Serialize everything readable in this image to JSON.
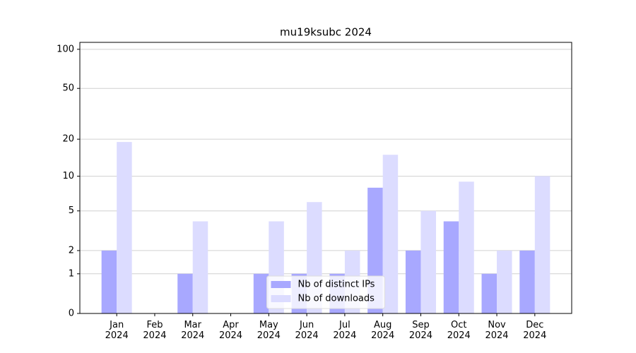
{
  "chart_data": {
    "type": "bar",
    "title": "mu19ksubc 2024",
    "categories": [
      "Jan\n2024",
      "Feb\n2024",
      "Mar\n2024",
      "Apr\n2024",
      "May\n2024",
      "Jun\n2024",
      "Jul\n2024",
      "Aug\n2024",
      "Sep\n2024",
      "Oct\n2024",
      "Nov\n2024",
      "Dec\n2024"
    ],
    "series": [
      {
        "name": "Nb of distinct IPs",
        "color": "#a8a8ff",
        "values": [
          2,
          0,
          1,
          0,
          1,
          1,
          1,
          8,
          2,
          4,
          1,
          2
        ]
      },
      {
        "name": "Nb of downloads",
        "color": "#dcdcff",
        "values": [
          19,
          0,
          4,
          0,
          4,
          6,
          2,
          15,
          5,
          9,
          2,
          10
        ]
      }
    ],
    "yscale": "log1p",
    "ylim": [
      0,
      113
    ],
    "yticks": [
      0,
      1,
      2,
      5,
      10,
      20,
      50,
      100
    ],
    "grid": true,
    "legend": "lower center"
  }
}
